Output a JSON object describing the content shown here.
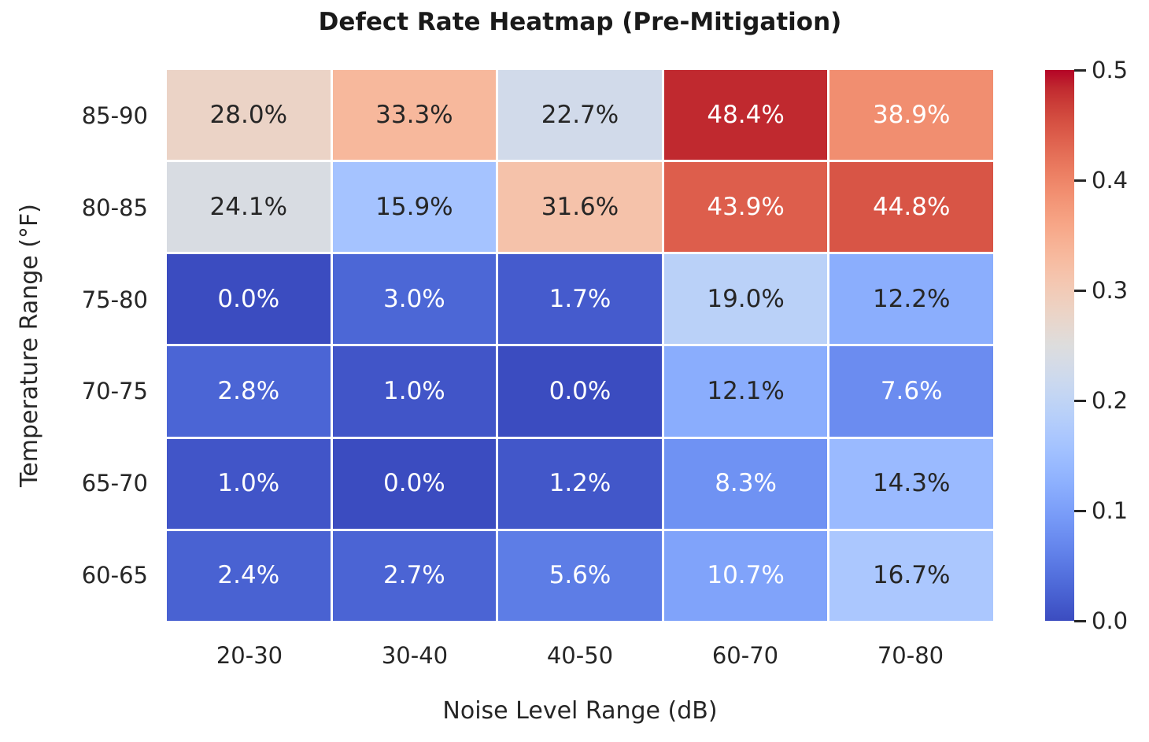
{
  "chart_data": {
    "type": "heatmap",
    "title": "Defect Rate Heatmap (Pre-Mitigation)",
    "xlabel": "Noise Level Range (dB)",
    "ylabel": "Temperature Range (°F)",
    "x_categories": [
      "20-30",
      "30-40",
      "40-50",
      "60-70",
      "70-80"
    ],
    "y_categories": [
      "85-90",
      "80-85",
      "75-80",
      "70-75",
      "65-70",
      "60-65"
    ],
    "values": [
      [
        0.28,
        0.333,
        0.227,
        0.484,
        0.389
      ],
      [
        0.241,
        0.159,
        0.316,
        0.439,
        0.448
      ],
      [
        0.0,
        0.03,
        0.017,
        0.19,
        0.122
      ],
      [
        0.028,
        0.01,
        0.0,
        0.121,
        0.076
      ],
      [
        0.01,
        0.0,
        0.012,
        0.083,
        0.143
      ],
      [
        0.024,
        0.027,
        0.056,
        0.107,
        0.167
      ]
    ],
    "cell_labels": [
      [
        "28.0%",
        "33.3%",
        "22.7%",
        "48.4%",
        "38.9%"
      ],
      [
        "24.1%",
        "15.9%",
        "31.6%",
        "43.9%",
        "44.8%"
      ],
      [
        "0.0%",
        "3.0%",
        "1.7%",
        "19.0%",
        "12.2%"
      ],
      [
        "2.8%",
        "1.0%",
        "0.0%",
        "12.1%",
        "7.6%"
      ],
      [
        "1.0%",
        "0.0%",
        "1.2%",
        "8.3%",
        "14.3%"
      ],
      [
        "2.4%",
        "2.7%",
        "5.6%",
        "10.7%",
        "16.7%"
      ]
    ],
    "colorbar": {
      "vmin": 0.0,
      "vmax": 0.5,
      "tick_values": [
        0.5,
        0.4,
        0.3,
        0.2,
        0.1,
        0.0
      ],
      "tick_labels": [
        "0.5",
        "0.4",
        "0.3",
        "0.2",
        "0.1",
        "0.0"
      ],
      "position": "right"
    },
    "colormap": {
      "name": "coolwarm",
      "stops": [
        {
          "t": 0.0,
          "hex": "#3b4cc0"
        },
        {
          "t": 0.03125,
          "hex": "#445acc"
        },
        {
          "t": 0.0625,
          "hex": "#4d68d7"
        },
        {
          "t": 0.09375,
          "hex": "#5775e1"
        },
        {
          "t": 0.125,
          "hex": "#6282ea"
        },
        {
          "t": 0.15625,
          "hex": "#6c8ef1"
        },
        {
          "t": 0.1875,
          "hex": "#779af7"
        },
        {
          "t": 0.21875,
          "hex": "#82a5fb"
        },
        {
          "t": 0.25,
          "hex": "#8db0fe"
        },
        {
          "t": 0.28125,
          "hex": "#98b9ff"
        },
        {
          "t": 0.3125,
          "hex": "#a3c2ff"
        },
        {
          "t": 0.34375,
          "hex": "#aec9fd"
        },
        {
          "t": 0.375,
          "hex": "#b8d0f9"
        },
        {
          "t": 0.40625,
          "hex": "#c2d5f4"
        },
        {
          "t": 0.4375,
          "hex": "#ccd9ee"
        },
        {
          "t": 0.46875,
          "hex": "#d5dbe6"
        },
        {
          "t": 0.5,
          "hex": "#dddddd"
        },
        {
          "t": 0.53125,
          "hex": "#e5d8d1"
        },
        {
          "t": 0.5625,
          "hex": "#ecd3c5"
        },
        {
          "t": 0.59375,
          "hex": "#f1ccb9"
        },
        {
          "t": 0.625,
          "hex": "#f5c4ad"
        },
        {
          "t": 0.65625,
          "hex": "#f7bba0"
        },
        {
          "t": 0.6875,
          "hex": "#f7b194"
        },
        {
          "t": 0.71875,
          "hex": "#f7a687"
        },
        {
          "t": 0.75,
          "hex": "#f49a7b"
        },
        {
          "t": 0.78125,
          "hex": "#f18d6f"
        },
        {
          "t": 0.8125,
          "hex": "#ec7f63"
        },
        {
          "t": 0.84375,
          "hex": "#e57058"
        },
        {
          "t": 0.875,
          "hex": "#de604d"
        },
        {
          "t": 0.90625,
          "hex": "#d55042"
        },
        {
          "t": 0.9375,
          "hex": "#cb3e38"
        },
        {
          "t": 0.96875,
          "hex": "#c0282f"
        },
        {
          "t": 1.0,
          "hex": "#b40426"
        }
      ]
    },
    "annotation_colors": {
      "dark": "#262626",
      "light": "#ffffff"
    },
    "cell_gap_color": "#ffffff",
    "grid": false,
    "legend": false
  }
}
